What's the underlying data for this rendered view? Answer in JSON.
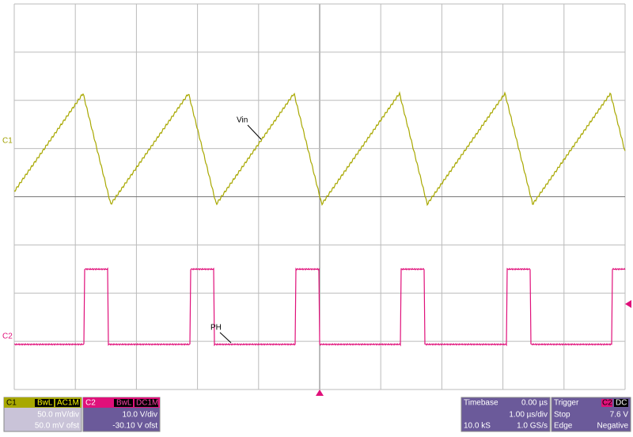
{
  "channel_labels": {
    "c1": "C1",
    "c2": "C2"
  },
  "annotations": {
    "vin": "Vin",
    "ph": "PH"
  },
  "c1_panel": {
    "name": "C1",
    "bandwidth": "BwL",
    "coupling": "AC1M",
    "scale": "50.0 mV/div",
    "offset": "50.0 mV ofst"
  },
  "c2_panel": {
    "name": "C2",
    "bandwidth": "BwL",
    "coupling": "DC1M",
    "scale": "10.0 V/div",
    "offset": "-30.10 V ofst"
  },
  "timebase_panel": {
    "title": "Timebase",
    "delay": "0.00 µs",
    "scale": "1.00 µs/div",
    "samples": "10.0 kS",
    "rate": "1.0 GS/s"
  },
  "trigger_panel": {
    "title": "Trigger",
    "source": "C2",
    "coupling": "DC",
    "mode": "Stop",
    "level": "7.6 V",
    "slope_label": "Edge",
    "slope": "Negative"
  }
}
